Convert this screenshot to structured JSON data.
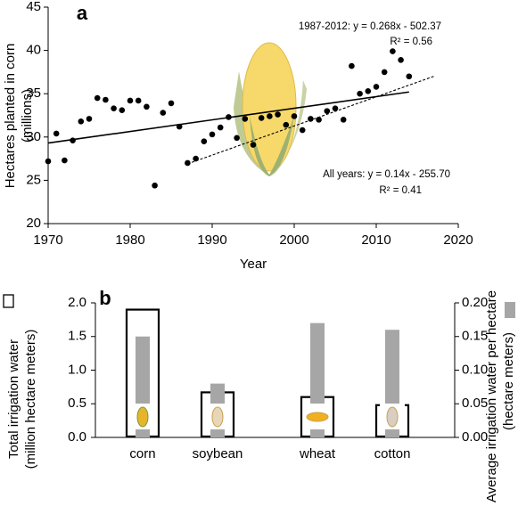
{
  "chart_data": [
    {
      "type": "scatter",
      "panel_label": "a",
      "xlabel": "Year",
      "ylabel": [
        "Hectares planted in corn",
        "(millions)"
      ],
      "x": [
        1970,
        1971,
        1972,
        1973,
        1974,
        1975,
        1976,
        1977,
        1978,
        1979,
        1980,
        1981,
        1982,
        1983,
        1984,
        1985,
        1986,
        1987,
        1988,
        1989,
        1990,
        1991,
        1992,
        1993,
        1994,
        1995,
        1996,
        1997,
        1998,
        1999,
        2000,
        2001,
        2002,
        2003,
        2004,
        2005,
        2006,
        2007,
        2008,
        2009,
        2010,
        2011,
        2012,
        2013,
        2014
      ],
      "values": [
        27.2,
        30.4,
        27.3,
        29.6,
        31.8,
        32.1,
        34.5,
        34.3,
        33.3,
        33.1,
        34.2,
        34.2,
        33.5,
        24.4,
        32.8,
        33.9,
        31.2,
        27.0,
        27.5,
        29.5,
        30.3,
        31.1,
        32.3,
        29.9,
        32.1,
        29.1,
        32.2,
        32.4,
        32.6,
        31.4,
        32.4,
        30.8,
        32.1,
        32.0,
        33.0,
        33.3,
        32.0,
        38.2,
        35.0,
        35.3,
        35.8,
        37.5,
        39.9,
        38.9,
        37.0
      ],
      "color": "#000000",
      "lines": [
        {
          "x": [
            1970,
            2014
          ],
          "values": [
            29.3,
            35.2
          ],
          "dashed": false
        },
        {
          "x": [
            1987,
            2017
          ],
          "values": [
            26.9,
            37.0
          ],
          "dashed": true
        }
      ],
      "annotations": [
        "1987-2012: y = 0.268x - 502.37",
        "R² = 0.56",
        "All years: y = 0.14x - 255.70",
        "R² = 0.41"
      ],
      "xlim": [
        1970,
        2020
      ],
      "xticks": [
        1970,
        1980,
        1990,
        2000,
        2010,
        2020
      ],
      "ylim": [
        20,
        45
      ],
      "yticks": [
        20,
        25,
        30,
        35,
        40,
        45
      ]
    },
    {
      "type": "bar",
      "panel_label": "b",
      "categories": [
        "corn",
        "soybean",
        "wheat",
        "cotton"
      ],
      "ylabel": [
        "Total irrigation water",
        "(million hectare meters)"
      ],
      "y2label": [
        "Average irrigation water per hectare",
        "(hectare meters)"
      ],
      "series": [
        {
          "values": [
            1.9,
            0.67,
            0.6,
            0.48
          ],
          "color": "#000000",
          "outline": true
        },
        {
          "values": [
            0.15,
            0.08,
            0.17,
            0.16
          ],
          "color": "#a6a6a6",
          "axis": "y2"
        }
      ],
      "ylim": [
        0,
        2.0
      ],
      "yticks": [
        {
          "value": 0,
          "label": "0.0"
        },
        0.5,
        {
          "value": 1,
          "label": "1.0"
        },
        1.5,
        {
          "value": 2,
          "label": "2.0"
        }
      ],
      "y2lim": [
        0,
        0.2
      ],
      "y2ticks": [
        {
          "value": 0,
          "label": "0.00"
        },
        {
          "value": 0.05,
          "label": "0.05"
        },
        {
          "value": 0.1,
          "label": "0.10"
        },
        {
          "value": 0.15,
          "label": "0.15"
        },
        {
          "value": 0.2,
          "label": "0.20"
        }
      ]
    }
  ]
}
